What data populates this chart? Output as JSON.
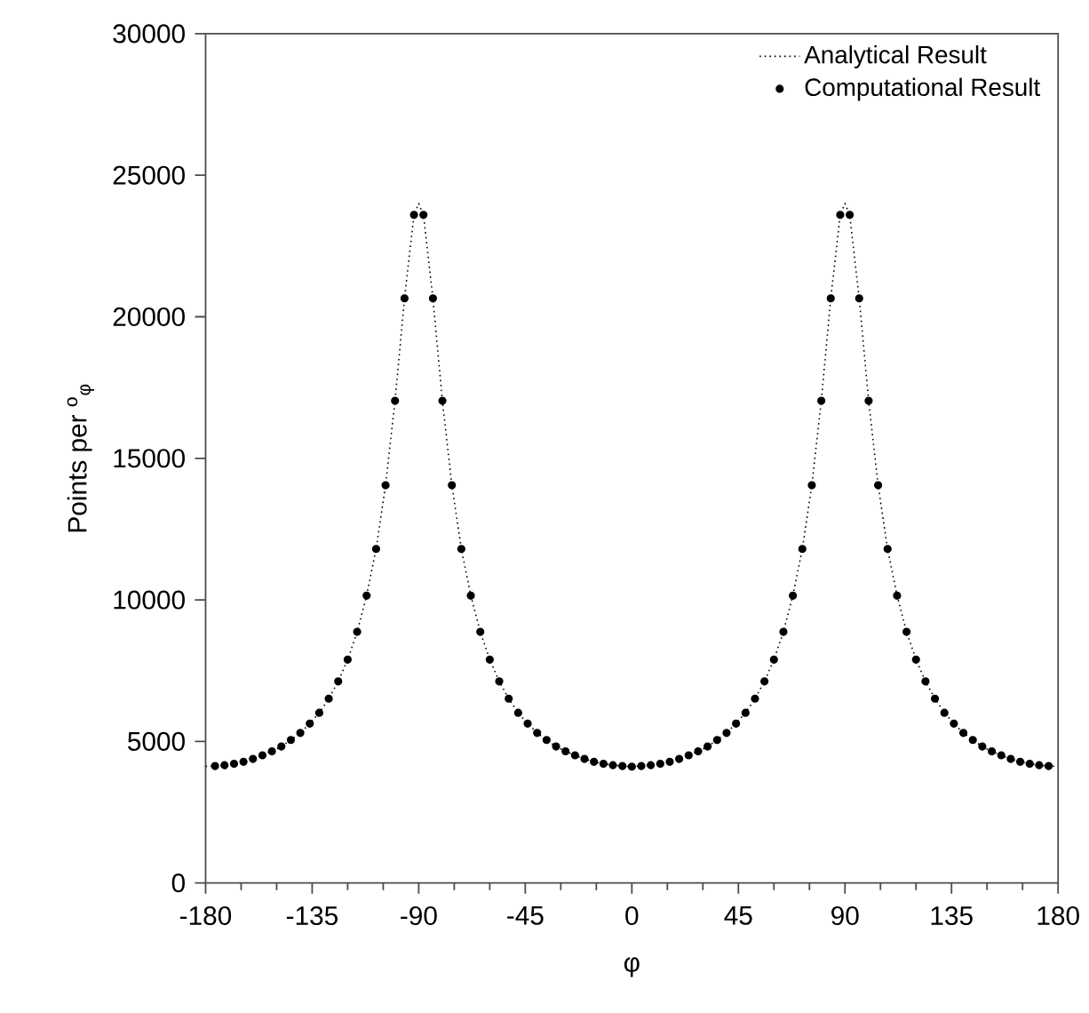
{
  "chart_data": {
    "type": "line",
    "xlabel": "φ",
    "ylabel": "Points per $^{o}$$_{φ}$",
    "xlim": [
      -180,
      180
    ],
    "ylim": [
      0,
      30000
    ],
    "xticks": [
      -180,
      -135,
      -90,
      -45,
      0,
      45,
      90,
      135,
      180
    ],
    "yticks": [
      0,
      5000,
      10000,
      15000,
      20000,
      25000,
      30000
    ],
    "legend": "top right",
    "series": [
      {
        "name": "Analytical Result",
        "color": "#000000",
        "marker": "none",
        "line_style": "dotted",
        "x": [
          -180,
          -176,
          -172,
          -168,
          -164,
          -160,
          -156,
          -152,
          -148,
          -144,
          -140,
          -136,
          -132,
          -128,
          -124,
          -120,
          -116,
          -112,
          -108,
          -104,
          -100,
          -96,
          -92,
          -90,
          -88,
          -84,
          -80,
          -76,
          -72,
          -68,
          -64,
          -60,
          -56,
          -52,
          -48,
          -44,
          -40,
          -36,
          -32,
          -28,
          -24,
          -20,
          -16,
          -12,
          -8,
          -4,
          0,
          4,
          8,
          12,
          16,
          20,
          24,
          28,
          32,
          36,
          40,
          44,
          48,
          52,
          56,
          60,
          64,
          68,
          72,
          76,
          80,
          84,
          88,
          90,
          92,
          96,
          100,
          104,
          108,
          112,
          116,
          120,
          124,
          128,
          132,
          136,
          140,
          144,
          148,
          152,
          156,
          160,
          164,
          168,
          172,
          176,
          180
        ],
        "values": [
          4120,
          4130,
          4160,
          4210,
          4280,
          4380,
          4510,
          4650,
          4820,
          5050,
          5300,
          5630,
          6010,
          6510,
          7120,
          7890,
          8870,
          10150,
          11800,
          14050,
          17030,
          20650,
          23600,
          24000,
          23600,
          20650,
          17030,
          14050,
          11800,
          10150,
          8870,
          7890,
          7120,
          6510,
          6010,
          5630,
          5300,
          5050,
          4820,
          4650,
          4510,
          4380,
          4280,
          4210,
          4160,
          4130,
          4110,
          4130,
          4160,
          4210,
          4280,
          4380,
          4510,
          4650,
          4820,
          5050,
          5300,
          5630,
          6010,
          6510,
          7120,
          7890,
          8870,
          10150,
          11800,
          14050,
          17030,
          20650,
          23600,
          24000,
          23600,
          20650,
          17030,
          14050,
          11800,
          10150,
          8870,
          7890,
          7120,
          6510,
          6010,
          5630,
          5300,
          5050,
          4820,
          4650,
          4510,
          4380,
          4280,
          4210,
          4160,
          4130,
          4120
        ]
      },
      {
        "name": "Computational Result",
        "type": "scatter",
        "color": "#000000",
        "marker": "circle",
        "x": [
          -176,
          -172,
          -168,
          -164,
          -160,
          -156,
          -152,
          -148,
          -144,
          -140,
          -136,
          -132,
          -128,
          -124,
          -120,
          -116,
          -112,
          -108,
          -104,
          -100,
          -96,
          -92,
          -88,
          -84,
          -80,
          -76,
          -72,
          -68,
          -64,
          -60,
          -56,
          -52,
          -48,
          -44,
          -40,
          -36,
          -32,
          -28,
          -24,
          -20,
          -16,
          -12,
          -8,
          -4,
          0,
          4,
          8,
          12,
          16,
          20,
          24,
          28,
          32,
          36,
          40,
          44,
          48,
          52,
          56,
          60,
          64,
          68,
          72,
          76,
          80,
          84,
          88,
          92,
          96,
          100,
          104,
          108,
          112,
          116,
          120,
          124,
          128,
          132,
          136,
          140,
          144,
          148,
          152,
          156,
          160,
          164,
          168,
          172,
          176
        ],
        "values": [
          4130,
          4160,
          4210,
          4280,
          4380,
          4510,
          4650,
          4820,
          5050,
          5300,
          5630,
          6010,
          6510,
          7120,
          7890,
          8870,
          10150,
          11800,
          14050,
          17030,
          20650,
          23600,
          23600,
          20650,
          17030,
          14050,
          11800,
          10150,
          8870,
          7890,
          7120,
          6510,
          6010,
          5630,
          5300,
          5050,
          4820,
          4650,
          4510,
          4380,
          4280,
          4210,
          4160,
          4130,
          4110,
          4130,
          4160,
          4210,
          4280,
          4380,
          4510,
          4650,
          4820,
          5050,
          5300,
          5630,
          6010,
          6510,
          7120,
          7890,
          8870,
          10150,
          11800,
          14050,
          17030,
          20650,
          23600,
          23600,
          20650,
          17030,
          14050,
          11800,
          10150,
          8870,
          7890,
          7120,
          6510,
          6010,
          5630,
          5300,
          5050,
          4820,
          4650,
          4510,
          4380,
          4280,
          4210,
          4160,
          4130
        ]
      }
    ]
  }
}
